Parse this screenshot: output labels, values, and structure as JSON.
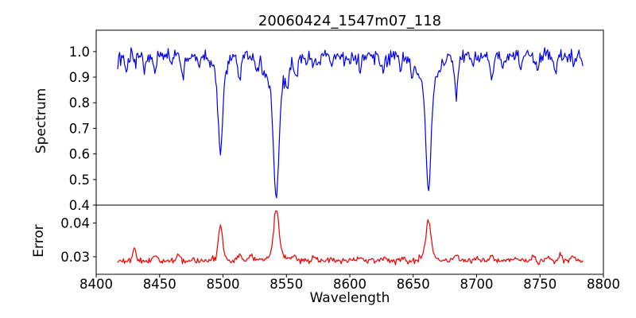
{
  "figure": {
    "background": "#ffffff",
    "axis_color": "#000000",
    "text_color": "#000000"
  },
  "chart_data": {
    "type": "line",
    "title": "20060424_1547m07_118",
    "xlabel": "Wavelength",
    "grid": false,
    "legend": null,
    "xlim": [
      8400,
      8800
    ],
    "xticks": {
      "values": [
        8400,
        8450,
        8500,
        8550,
        8600,
        8650,
        8700,
        8750,
        8800
      ],
      "labels": [
        "8400",
        "8450",
        "8500",
        "8550",
        "8600",
        "8650",
        "8700",
        "8750",
        "8800"
      ]
    },
    "x_sampling": {
      "start": 8417,
      "end": 8784,
      "step": 0.75
    },
    "noise_seed": 13,
    "key_features": {
      "absorption_line_minima": {
        "8498": 0.61,
        "8542": 0.44,
        "8662": 0.45
      },
      "error_peaks": {
        "8498": 0.038,
        "8542": 0.044,
        "8662": 0.041
      },
      "error_baseline": 0.029,
      "spectrum_continuum": 0.98
    },
    "panels": [
      {
        "id": "spectrum",
        "ylabel": "Spectrum",
        "ylim": [
          0.4,
          1.0834
        ],
        "yticks": {
          "values": [
            1.0,
            0.9,
            0.8,
            0.7,
            0.6,
            0.5,
            0.4
          ],
          "labels": [
            "1.0",
            "0.9",
            "0.8",
            "0.7",
            "0.6",
            "0.5",
            "0.4"
          ]
        },
        "line_color": "#0000ee",
        "model": {
          "sign": -1,
          "base": 0.978,
          "noise_sigma": 0.016,
          "noise_scales_with_model": true,
          "features": [
            {
              "center": 8417,
              "amp": 0.035,
              "width": 1.5
            },
            {
              "center": 8424,
              "amp": 0.04,
              "width": 1.2
            },
            {
              "center": 8438,
              "amp": 0.045,
              "width": 1.1
            },
            {
              "center": 8446,
              "amp": 0.05,
              "width": 1.2
            },
            {
              "center": 8460,
              "amp": 0.035,
              "width": 1.0
            },
            {
              "center": 8468,
              "amp": 0.07,
              "width": 1.3
            },
            {
              "center": 8481,
              "amp": 0.04,
              "width": 1.0
            },
            {
              "center": 8498,
              "amp": 0.285,
              "width": 1.6,
              "wing_amp": 0.085,
              "wing_width": 4.5
            },
            {
              "center": 8513,
              "amp": 0.085,
              "width": 1.2
            },
            {
              "center": 8527,
              "amp": 0.05,
              "width": 1.0
            },
            {
              "center": 8542,
              "amp": 0.415,
              "width": 2.0,
              "wing_amp": 0.13,
              "wing_width": 7.5
            },
            {
              "center": 8551,
              "amp": 0.05,
              "width": 1.0
            },
            {
              "center": 8558,
              "amp": 0.06,
              "width": 1.2
            },
            {
              "center": 8572,
              "amp": 0.04,
              "width": 1.0
            },
            {
              "center": 8585,
              "amp": 0.04,
              "width": 1.0
            },
            {
              "center": 8600,
              "amp": 0.035,
              "width": 1.0
            },
            {
              "center": 8608,
              "amp": 0.055,
              "width": 1.1
            },
            {
              "center": 8626,
              "amp": 0.05,
              "width": 1.0
            },
            {
              "center": 8640,
              "amp": 0.045,
              "width": 1.0
            },
            {
              "center": 8649,
              "amp": 0.05,
              "width": 1.0
            },
            {
              "center": 8662,
              "amp": 0.4,
              "width": 1.9,
              "wing_amp": 0.125,
              "wing_width": 6.5
            },
            {
              "center": 8684,
              "amp": 0.135,
              "width": 1.2
            },
            {
              "center": 8697,
              "amp": 0.04,
              "width": 1.0
            },
            {
              "center": 8712,
              "amp": 0.07,
              "width": 1.3
            },
            {
              "center": 8721,
              "amp": 0.04,
              "width": 1.0
            },
            {
              "center": 8735,
              "amp": 0.04,
              "width": 1.0
            },
            {
              "center": 8748,
              "amp": 0.04,
              "width": 1.0
            },
            {
              "center": 8762,
              "amp": 0.05,
              "width": 1.1
            },
            {
              "center": 8777,
              "amp": 0.045,
              "width": 1.0
            },
            {
              "center": 8784,
              "amp": 0.05,
              "width": 1.5
            }
          ]
        }
      },
      {
        "id": "error",
        "ylabel": "Error",
        "ylim": [
          0.0248,
          0.0453
        ],
        "yticks": {
          "values": [
            0.04,
            0.03
          ],
          "labels": [
            "0.04",
            "0.03"
          ]
        },
        "line_color": "#ee0000",
        "model": {
          "sign": 1,
          "base": 0.0288,
          "noise_sigma": 0.0004,
          "noise_scales_with_model": false,
          "features": [
            {
              "center": 8430,
              "amp": 0.0042,
              "width": 1.1
            },
            {
              "center": 8447,
              "amp": 0.0012,
              "width": 1.4
            },
            {
              "center": 8465,
              "amp": 0.0022,
              "width": 1.3
            },
            {
              "center": 8476,
              "amp": 0.001,
              "width": 1.2
            },
            {
              "center": 8498,
              "amp": 0.0092,
              "width": 1.6,
              "wing_amp": 0.0012,
              "wing_width": 4.0
            },
            {
              "center": 8513,
              "amp": 0.0016,
              "width": 1.4
            },
            {
              "center": 8522,
              "amp": 0.0012,
              "width": 1.4
            },
            {
              "center": 8542,
              "amp": 0.0128,
              "width": 1.9,
              "wing_amp": 0.0026,
              "wing_width": 5.5
            },
            {
              "center": 8556,
              "amp": 0.0013,
              "width": 1.5
            },
            {
              "center": 8572,
              "amp": 0.0015,
              "width": 1.5
            },
            {
              "center": 8585,
              "amp": 0.0008,
              "width": 1.3
            },
            {
              "center": 8608,
              "amp": 0.0009,
              "width": 1.5
            },
            {
              "center": 8627,
              "amp": 0.0008,
              "width": 1.3
            },
            {
              "center": 8641,
              "amp": 0.0009,
              "width": 1.3
            },
            {
              "center": 8662,
              "amp": 0.0098,
              "width": 1.9,
              "wing_amp": 0.002,
              "wing_width": 5.0
            },
            {
              "center": 8684,
              "amp": 0.0022,
              "width": 1.2
            },
            {
              "center": 8700,
              "amp": 0.001,
              "width": 1.4
            },
            {
              "center": 8712,
              "amp": 0.0014,
              "width": 1.4
            },
            {
              "center": 8731,
              "amp": 0.0011,
              "width": 1.3
            },
            {
              "center": 8745,
              "amp": 0.0015,
              "width": 1.2
            },
            {
              "center": 8757,
              "amp": 0.0012,
              "width": 1.2
            },
            {
              "center": 8766,
              "amp": 0.002,
              "width": 1.3
            },
            {
              "center": 8776,
              "amp": 0.0013,
              "width": 1.1
            }
          ]
        }
      }
    ]
  }
}
